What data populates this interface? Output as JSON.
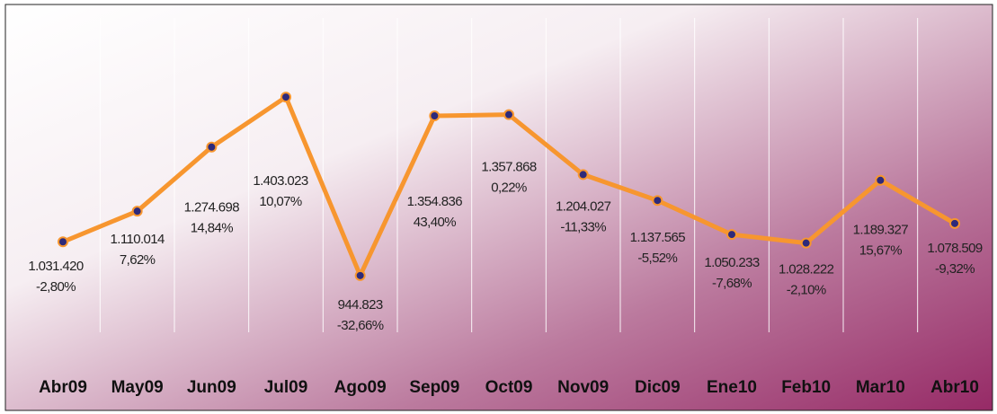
{
  "chart_data": {
    "type": "line",
    "categories": [
      "Abr09",
      "May09",
      "Jun09",
      "Jul09",
      "Ago09",
      "Sep09",
      "Oct09",
      "Nov09",
      "Dic09",
      "Ene10",
      "Feb10",
      "Mar10",
      "Abr10"
    ],
    "values": [
      1031420,
      1110014,
      1274698,
      1403023,
      944823,
      1354836,
      1357868,
      1204027,
      1137565,
      1050233,
      1028222,
      1189327,
      1078509
    ],
    "value_labels": [
      "1.031.420",
      "1.110.014",
      "1.274.698",
      "1.403.023",
      "944.823",
      "1.354.836",
      "1.357.868",
      "1.204.027",
      "1.137.565",
      "1.050.233",
      "1.028.222",
      "1.189.327",
      "1.078.509"
    ],
    "change_labels": [
      "-2,80%",
      "7,62%",
      "14,84%",
      "10,07%",
      "-32,66%",
      "43,40%",
      "0,22%",
      "-11,33%",
      "-5,52%",
      "-7,68%",
      "-2,10%",
      "15,67%",
      "-9,32%"
    ],
    "color": "#f7962f",
    "marker_color": "#2e2a7a",
    "ylim": [
      730000,
      1560000
    ],
    "grid": true
  }
}
